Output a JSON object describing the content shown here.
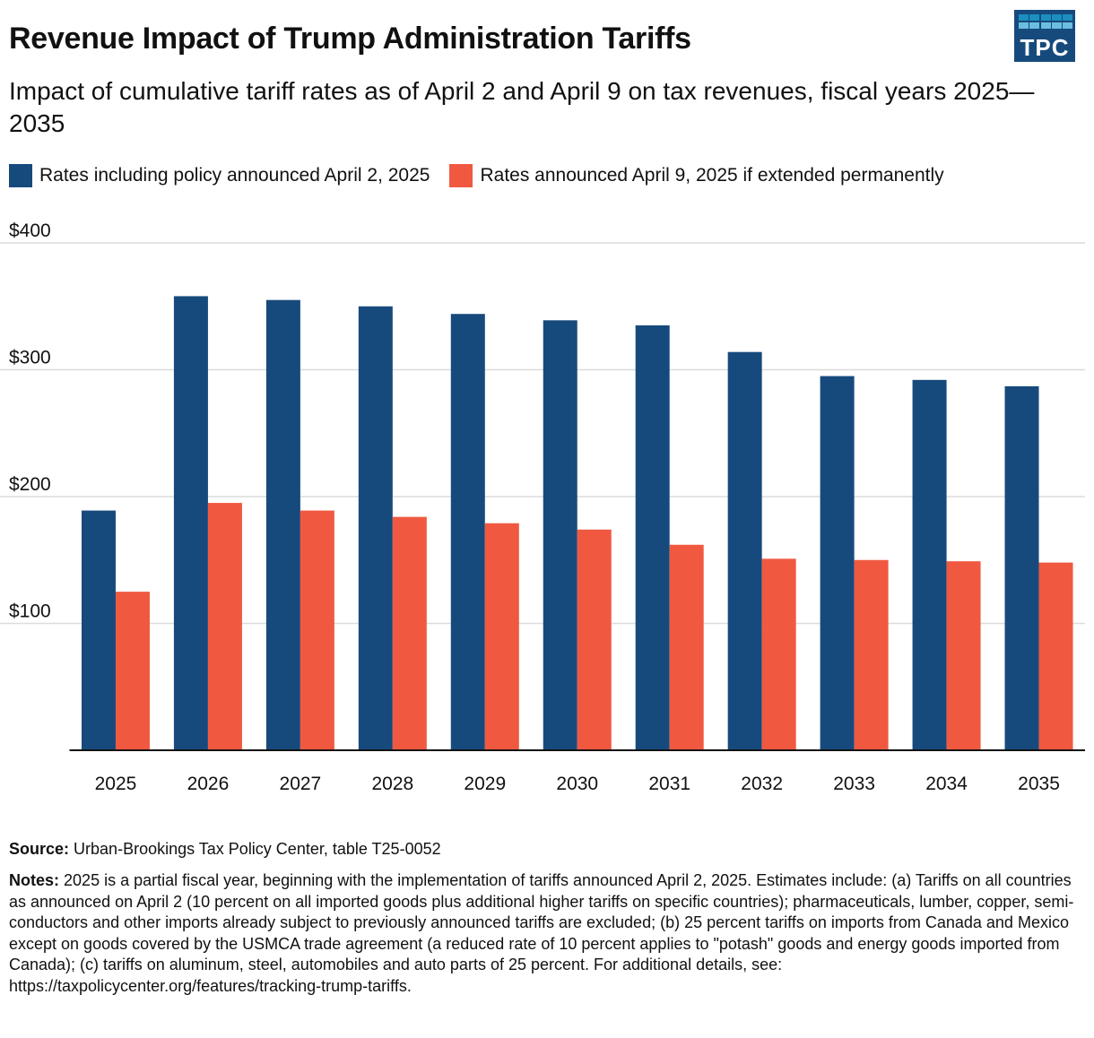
{
  "title": "Revenue Impact of Trump Administration Tariffs",
  "subtitle": "Impact of cumulative tariff rates as of April 2 and April 9 on tax revenues, fiscal years 2025—2035",
  "logo_text": "TPC",
  "source_label": "Source:",
  "source_text": "Urban-Brookings Tax Policy Center, table T25-0052",
  "notes_label": "Notes:",
  "notes_text": "2025 is a partial fiscal year, beginning with the implementation of tariffs announced April 2, 2025. Estimates include: (a) Tariffs on all countries as announced on April 2 (10 percent on all imported goods plus additional higher tariffs on specific countries); pharmaceuticals, lumber, copper, semi-conductors and other imports already subject to previously announced tariffs are excluded; (b) 25 percent tariffs on imports from Canada and Mexico except on goods covered by the USMCA trade agreement (a reduced rate of 10 percent applies to \"potash\" goods and energy goods imported from Canada); (c) tariffs on aluminum, steel, automobiles and auto parts of 25 percent. For additional details, see: https://taxpolicycenter.org/features/tracking-trump-tariffs.",
  "chart_data": {
    "type": "bar",
    "categories": [
      "2025",
      "2026",
      "2027",
      "2028",
      "2029",
      "2030",
      "2031",
      "2032",
      "2033",
      "2034",
      "2035"
    ],
    "series": [
      {
        "name": "Rates including policy announced April 2, 2025",
        "color": "#174A7C",
        "values": [
          189,
          358,
          355,
          350,
          344,
          339,
          335,
          314,
          295,
          292,
          287
        ]
      },
      {
        "name": "Rates announced April 9, 2025 if extended permanently",
        "color": "#F05940",
        "values": [
          125,
          195,
          189,
          184,
          179,
          174,
          162,
          151,
          150,
          149,
          148
        ]
      }
    ],
    "ylim": [
      0,
      400
    ],
    "yticks": [
      100,
      200,
      300,
      400
    ],
    "ytick_labels": [
      "$100",
      "$200",
      "$300",
      "$400"
    ],
    "grid": true,
    "legend": "top-left",
    "xlabel": "",
    "ylabel": ""
  }
}
